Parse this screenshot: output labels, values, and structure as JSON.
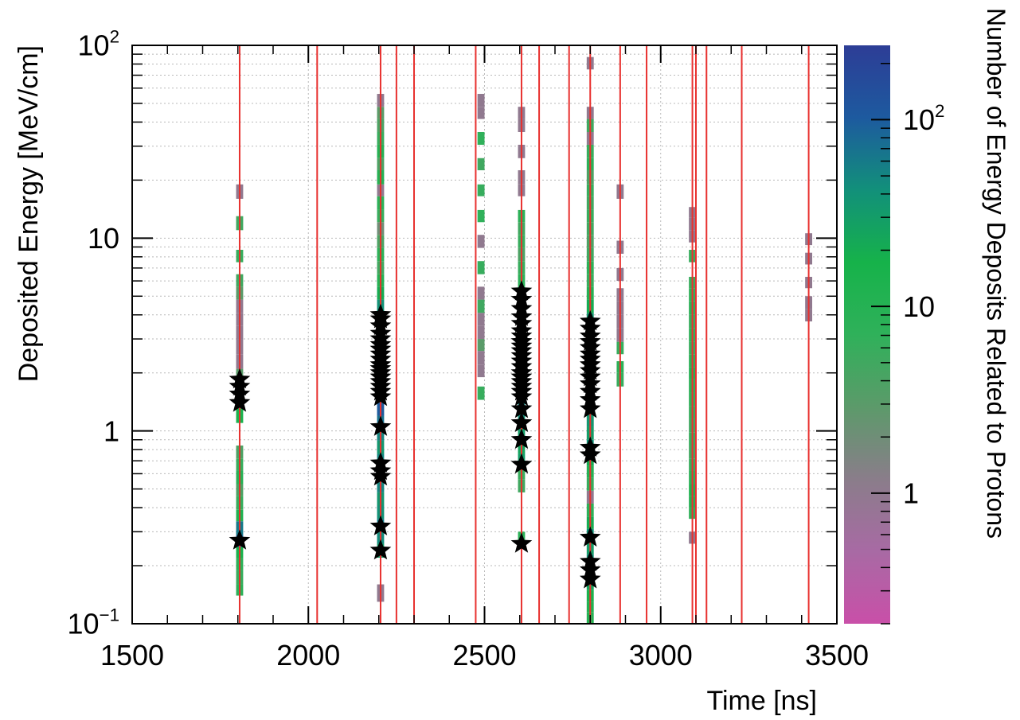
{
  "chart_data": {
    "type": "heatmap",
    "title": "",
    "xlabel": "Time [ns]",
    "ylabel": "Deposited Energy [MeV/cm]",
    "zlabel": "Number of Energy Deposits Related to Protons",
    "x_scale": "linear",
    "y_scale": "log",
    "z_scale": "log",
    "xlim": [
      1500,
      3500
    ],
    "ylim": [
      0.1,
      100
    ],
    "zlim": [
      0.2,
      250
    ],
    "grid": true,
    "x_ticks": [
      1500,
      2000,
      2500,
      3000,
      3500
    ],
    "x_tick_labels": [
      "1500",
      "2000",
      "2500",
      "3000",
      "3500"
    ],
    "y_tick_labels": [
      {
        "value": 0.1,
        "base": "10",
        "exp": "−1"
      },
      {
        "value": 1,
        "base": "1",
        "exp": ""
      },
      {
        "value": 10,
        "base": "10",
        "exp": ""
      },
      {
        "value": 100,
        "base": "10",
        "exp": "2"
      }
    ],
    "z_tick_labels": [
      {
        "value": 1,
        "base": "1",
        "exp": ""
      },
      {
        "value": 10,
        "base": "10",
        "exp": ""
      },
      {
        "value": 100,
        "base": "10",
        "exp": "2"
      }
    ],
    "colors": {
      "colormap": [
        "#c94fa8",
        "#a86aa4",
        "#8a7d8a",
        "#5c9a6a",
        "#2fb15a",
        "#16b24a",
        "#12907a",
        "#1d5a9f",
        "#2d3d96"
      ],
      "vertical_line": "#e8312f",
      "marker": "#000000",
      "grid": "#b9b9b9"
    },
    "vertical_lines_x": [
      1805,
      2025,
      2205,
      2250,
      2300,
      2475,
      2605,
      2655,
      2740,
      2800,
      2885,
      2960,
      3090,
      3100,
      3130,
      3230,
      3420
    ],
    "bin_width_ns": 20,
    "columns": [
      {
        "x": 1805,
        "cells": [
          [
            0.14,
            0.16,
            8
          ],
          [
            0.16,
            0.19,
            6
          ],
          [
            0.19,
            0.22,
            8
          ],
          [
            0.22,
            0.25,
            15
          ],
          [
            0.25,
            0.29,
            80
          ],
          [
            0.29,
            0.34,
            60
          ],
          [
            0.34,
            0.39,
            12
          ],
          [
            0.39,
            0.46,
            6
          ],
          [
            0.46,
            0.53,
            4
          ],
          [
            0.53,
            0.62,
            9
          ],
          [
            0.62,
            0.72,
            6
          ],
          [
            0.72,
            0.84,
            4
          ],
          [
            1.1,
            1.3,
            15
          ],
          [
            1.3,
            1.5,
            10
          ],
          [
            1.5,
            1.8,
            8
          ],
          [
            1.8,
            2.1,
            3
          ],
          [
            2.1,
            2.5,
            1
          ],
          [
            2.5,
            3.0,
            1
          ],
          [
            3.0,
            3.5,
            1
          ],
          [
            3.5,
            4.1,
            1
          ],
          [
            4.1,
            4.8,
            1
          ],
          [
            4.8,
            5.6,
            3
          ],
          [
            5.6,
            6.5,
            5
          ],
          [
            7.5,
            8.7,
            6
          ],
          [
            11,
            13,
            5
          ],
          [
            16,
            19,
            1
          ]
        ]
      },
      {
        "x": 2205,
        "cells": [
          [
            0.13,
            0.16,
            1
          ],
          [
            0.22,
            0.26,
            30
          ],
          [
            0.26,
            0.3,
            45
          ],
          [
            0.3,
            0.35,
            60
          ],
          [
            0.35,
            0.41,
            40
          ],
          [
            0.41,
            0.48,
            35
          ],
          [
            0.48,
            0.56,
            50
          ],
          [
            0.56,
            0.65,
            60
          ],
          [
            0.65,
            0.76,
            50
          ],
          [
            0.76,
            0.89,
            35
          ],
          [
            0.89,
            1.04,
            50
          ],
          [
            1.04,
            1.2,
            70
          ],
          [
            1.2,
            1.4,
            100
          ],
          [
            1.4,
            1.65,
            150
          ],
          [
            1.65,
            1.9,
            200
          ],
          [
            1.9,
            2.2,
            200
          ],
          [
            2.2,
            2.6,
            150
          ],
          [
            2.6,
            3.0,
            120
          ],
          [
            3.0,
            3.5,
            90
          ],
          [
            3.5,
            4.1,
            60
          ],
          [
            4.1,
            4.8,
            40
          ],
          [
            4.8,
            5.6,
            20
          ],
          [
            5.6,
            6.5,
            10
          ],
          [
            6.5,
            7.6,
            5
          ],
          [
            7.6,
            8.9,
            8
          ],
          [
            8.9,
            10.4,
            4
          ],
          [
            10.4,
            12.1,
            2
          ],
          [
            12.1,
            14,
            6
          ],
          [
            14,
            16.5,
            8
          ],
          [
            16.5,
            19,
            1
          ],
          [
            19,
            22.5,
            10
          ],
          [
            22.5,
            26,
            4
          ],
          [
            26,
            30.5,
            10
          ],
          [
            30.5,
            35.5,
            6
          ],
          [
            35.5,
            41.5,
            4
          ],
          [
            41.5,
            48,
            3
          ],
          [
            48,
            56,
            1
          ]
        ]
      },
      {
        "x": 2490,
        "cells": [
          [
            1.45,
            1.7,
            6
          ],
          [
            1.9,
            2.2,
            1
          ],
          [
            2.2,
            2.6,
            1
          ],
          [
            2.6,
            3.0,
            3
          ],
          [
            3.0,
            3.5,
            1
          ],
          [
            3.5,
            4.1,
            1
          ],
          [
            4.1,
            4.8,
            5
          ],
          [
            4.8,
            5.6,
            1
          ],
          [
            6.5,
            7.6,
            6
          ],
          [
            8.9,
            10.4,
            1
          ],
          [
            12.1,
            14,
            7
          ],
          [
            16.5,
            19,
            6
          ],
          [
            22.5,
            26,
            5
          ],
          [
            30.5,
            35.5,
            7
          ],
          [
            41.5,
            48,
            1
          ],
          [
            48,
            56,
            1
          ]
        ]
      },
      {
        "x": 2605,
        "cells": [
          [
            0.25,
            0.3,
            8
          ],
          [
            0.48,
            0.56,
            5
          ],
          [
            0.56,
            0.65,
            6
          ],
          [
            0.65,
            0.76,
            30
          ],
          [
            0.76,
            0.89,
            25
          ],
          [
            0.89,
            1.04,
            30
          ],
          [
            1.04,
            1.2,
            40
          ],
          [
            1.2,
            1.4,
            50
          ],
          [
            1.4,
            1.65,
            70
          ],
          [
            1.65,
            1.9,
            90
          ],
          [
            1.9,
            2.2,
            100
          ],
          [
            2.2,
            2.6,
            110
          ],
          [
            2.6,
            3.0,
            100
          ],
          [
            3.0,
            3.5,
            80
          ],
          [
            3.5,
            4.1,
            60
          ],
          [
            4.1,
            4.8,
            40
          ],
          [
            4.8,
            5.6,
            20
          ],
          [
            5.6,
            6.5,
            8
          ],
          [
            6.5,
            7.6,
            6
          ],
          [
            7.6,
            8.9,
            4
          ],
          [
            8.9,
            10.4,
            6
          ],
          [
            10.4,
            12.1,
            5
          ],
          [
            12.1,
            14,
            8
          ],
          [
            16.5,
            19,
            1
          ],
          [
            19,
            22.5,
            1
          ],
          [
            26,
            30.5,
            1
          ],
          [
            35.5,
            41.5,
            1
          ],
          [
            41.5,
            48,
            1
          ]
        ]
      },
      {
        "x": 2800,
        "cells": [
          [
            0.1,
            0.115,
            10
          ],
          [
            0.115,
            0.13,
            12
          ],
          [
            0.13,
            0.15,
            15
          ],
          [
            0.15,
            0.17,
            25
          ],
          [
            0.17,
            0.2,
            60
          ],
          [
            0.2,
            0.23,
            40
          ],
          [
            0.23,
            0.27,
            30
          ],
          [
            0.27,
            0.31,
            40
          ],
          [
            0.31,
            0.36,
            20
          ],
          [
            0.36,
            0.42,
            8
          ],
          [
            0.42,
            0.49,
            1
          ],
          [
            0.49,
            0.57,
            6
          ],
          [
            0.57,
            0.66,
            10
          ],
          [
            0.66,
            0.77,
            20
          ],
          [
            0.77,
            0.9,
            40
          ],
          [
            0.9,
            1.05,
            30
          ],
          [
            1.05,
            1.22,
            35
          ],
          [
            1.22,
            1.42,
            50
          ],
          [
            1.42,
            1.65,
            70
          ],
          [
            1.65,
            1.92,
            90
          ],
          [
            1.92,
            2.23,
            100
          ],
          [
            2.23,
            2.6,
            80
          ],
          [
            2.6,
            3.0,
            70
          ],
          [
            3.0,
            3.5,
            50
          ],
          [
            3.5,
            4.1,
            35
          ],
          [
            4.1,
            4.8,
            20
          ],
          [
            4.8,
            5.6,
            10
          ],
          [
            5.6,
            6.5,
            6
          ],
          [
            6.5,
            7.6,
            8
          ],
          [
            7.6,
            8.9,
            5
          ],
          [
            8.9,
            10.4,
            4
          ],
          [
            10.4,
            12.1,
            5
          ],
          [
            12.1,
            14,
            6
          ],
          [
            14,
            16.5,
            5
          ],
          [
            16.5,
            19,
            6
          ],
          [
            19,
            22.5,
            4
          ],
          [
            22.5,
            26,
            8
          ],
          [
            26,
            30.5,
            6
          ],
          [
            30.5,
            35.5,
            1
          ],
          [
            35.5,
            41.5,
            5
          ],
          [
            41.5,
            48,
            1
          ],
          [
            75,
            87,
            1
          ]
        ]
      },
      {
        "x": 2885,
        "cells": [
          [
            1.7,
            2.0,
            6
          ],
          [
            2.0,
            2.3,
            8
          ],
          [
            2.5,
            2.9,
            6
          ],
          [
            2.9,
            3.4,
            1
          ],
          [
            3.4,
            4.0,
            1
          ],
          [
            4.0,
            4.7,
            1
          ],
          [
            4.7,
            5.5,
            1
          ],
          [
            6.0,
            7.0,
            1
          ],
          [
            8.3,
            9.7,
            1
          ],
          [
            16,
            19,
            1
          ]
        ]
      },
      {
        "x": 3090,
        "cells": [
          [
            0.26,
            0.3,
            1
          ],
          [
            0.35,
            0.4,
            7
          ],
          [
            0.4,
            0.46,
            10
          ],
          [
            0.46,
            0.53,
            12
          ],
          [
            0.53,
            0.62,
            8
          ],
          [
            0.62,
            0.72,
            6
          ],
          [
            0.72,
            0.84,
            5
          ],
          [
            0.84,
            0.98,
            6
          ],
          [
            0.98,
            1.15,
            5
          ],
          [
            1.15,
            1.35,
            6
          ],
          [
            1.35,
            1.58,
            7
          ],
          [
            1.58,
            1.85,
            8
          ],
          [
            1.85,
            2.15,
            10
          ],
          [
            2.15,
            2.5,
            8
          ],
          [
            2.5,
            2.9,
            6
          ],
          [
            2.9,
            3.4,
            7
          ],
          [
            3.4,
            4.0,
            6
          ],
          [
            4.0,
            4.7,
            8
          ],
          [
            4.7,
            5.5,
            7
          ],
          [
            5.5,
            6.3,
            6
          ],
          [
            7.5,
            8.7,
            6
          ],
          [
            9.5,
            11,
            1
          ],
          [
            11,
            12.8,
            1
          ],
          [
            12.8,
            14.5,
            1
          ]
        ]
      },
      {
        "x": 3420,
        "cells": [
          [
            3.7,
            4.3,
            1
          ],
          [
            4.3,
            5.0,
            1
          ],
          [
            5.5,
            6.3,
            1
          ],
          [
            7.3,
            8.4,
            1
          ],
          [
            9.2,
            10.6,
            1
          ]
        ]
      }
    ],
    "markers": [
      {
        "x": 1805,
        "y": [
          0.27,
          1.4,
          1.55,
          1.7,
          1.85
        ]
      },
      {
        "x": 2205,
        "y": [
          0.24,
          0.32,
          0.58,
          0.62,
          0.68,
          1.05,
          1.5,
          1.6,
          1.7,
          1.8,
          1.9,
          2.0,
          2.1,
          2.2,
          2.35,
          2.5,
          2.65,
          2.8,
          3.0,
          3.2,
          3.5,
          3.8,
          4.0
        ]
      },
      {
        "x": 2605,
        "y": [
          0.26,
          0.67,
          0.9,
          1.1,
          1.3,
          1.5,
          1.6,
          1.7,
          1.8,
          1.9,
          2.0,
          2.15,
          2.3,
          2.45,
          2.6,
          2.75,
          2.9,
          3.1,
          3.3,
          3.6,
          3.9,
          4.3,
          4.8,
          5.3
        ]
      },
      {
        "x": 2800,
        "y": [
          0.17,
          0.19,
          0.21,
          0.28,
          0.75,
          0.82,
          1.3,
          1.45,
          1.6,
          1.75,
          1.9,
          2.05,
          2.2,
          2.35,
          2.5,
          2.7,
          2.9,
          3.1,
          3.4,
          3.7
        ]
      }
    ]
  }
}
